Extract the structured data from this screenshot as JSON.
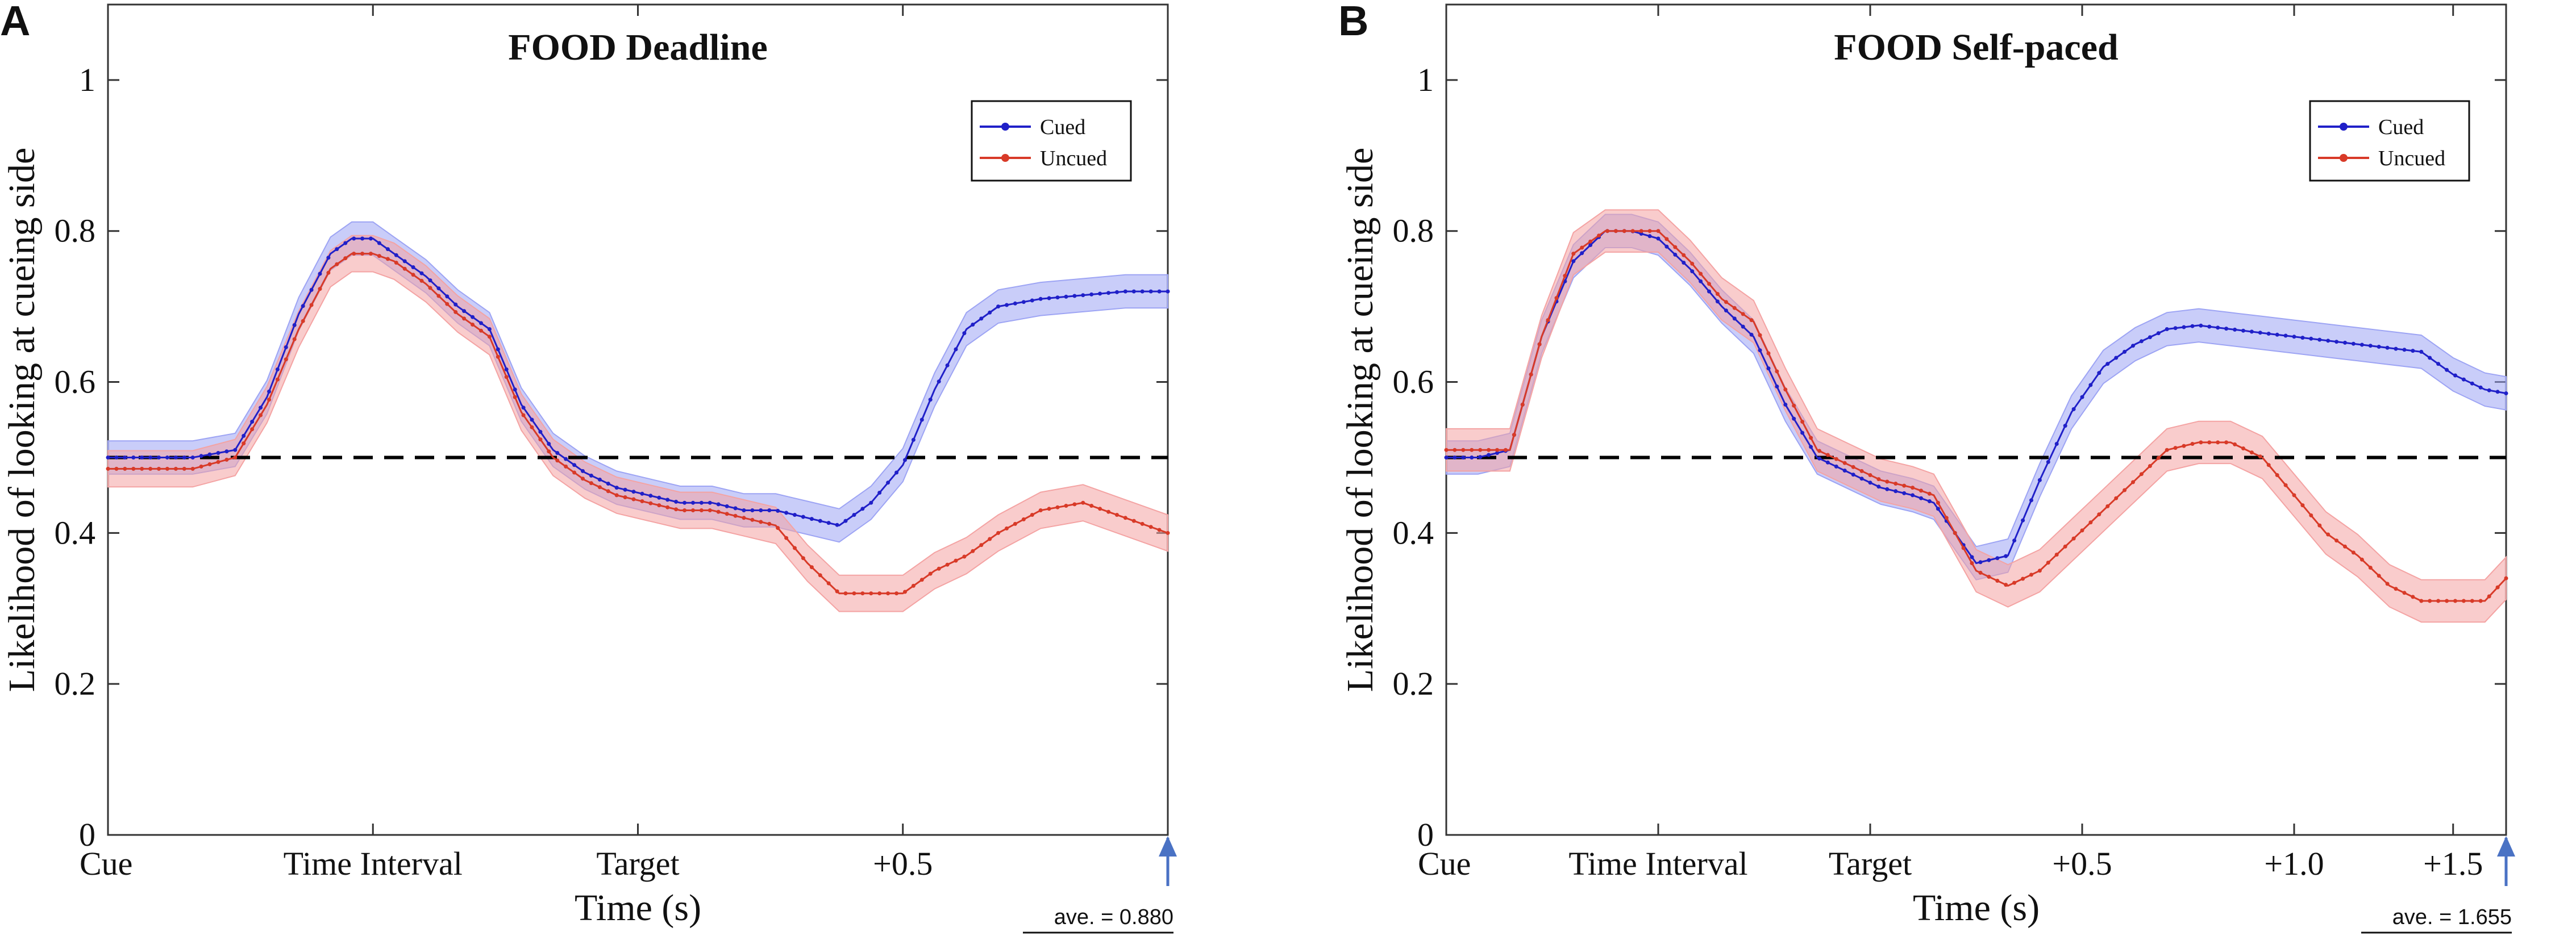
{
  "colors": {
    "cued_line": "#2020c8",
    "cued_band": "#9da4f4",
    "uncued_line": "#d83a28",
    "uncued_band": "#f4a3a3",
    "reference": "#000000",
    "arrow": "#4a72c4"
  },
  "chart_data": [
    {
      "type": "line",
      "panel": "A",
      "title": "FOOD Deadline",
      "xlabel": "Time (s)",
      "ylabel": "Likelihood of looking at cueing side",
      "ylim": [
        0,
        1.1
      ],
      "xlim": [
        0,
        1000
      ],
      "yticks": [
        0,
        0.2,
        0.4,
        0.6,
        0.8,
        1
      ],
      "ytick_labels": [
        "0",
        "0.2",
        "0.4",
        "0.6",
        "0.8",
        "1"
      ],
      "xticks": [
        0,
        250,
        500,
        750
      ],
      "xtick_labels": [
        "Cue",
        "Time Interval",
        "Target",
        "+0.5"
      ],
      "reference_y": 0.5,
      "legend": [
        "Cued",
        "Uncued"
      ],
      "note": "ave. = 0.880",
      "series": [
        {
          "name": "Cued",
          "x": [
            0,
            40,
            80,
            120,
            150,
            180,
            210,
            230,
            250,
            270,
            300,
            330,
            360,
            390,
            420,
            450,
            480,
            510,
            540,
            570,
            600,
            630,
            660,
            690,
            720,
            750,
            780,
            810,
            840,
            880,
            920,
            960,
            1000
          ],
          "y": [
            0.5,
            0.5,
            0.5,
            0.51,
            0.58,
            0.69,
            0.77,
            0.79,
            0.79,
            0.77,
            0.74,
            0.7,
            0.67,
            0.57,
            0.51,
            0.48,
            0.46,
            0.45,
            0.44,
            0.44,
            0.43,
            0.43,
            0.42,
            0.41,
            0.44,
            0.49,
            0.59,
            0.67,
            0.7,
            0.71,
            0.715,
            0.72,
            0.72
          ],
          "band": 0.022
        },
        {
          "name": "Uncued",
          "x": [
            0,
            40,
            80,
            120,
            150,
            180,
            210,
            230,
            250,
            270,
            300,
            330,
            360,
            390,
            420,
            450,
            480,
            510,
            540,
            570,
            600,
            630,
            660,
            690,
            720,
            750,
            780,
            810,
            840,
            880,
            920,
            960,
            1000
          ],
          "y": [
            0.485,
            0.485,
            0.485,
            0.5,
            0.57,
            0.67,
            0.75,
            0.77,
            0.77,
            0.76,
            0.73,
            0.69,
            0.66,
            0.56,
            0.5,
            0.47,
            0.45,
            0.44,
            0.43,
            0.43,
            0.42,
            0.41,
            0.36,
            0.32,
            0.32,
            0.32,
            0.35,
            0.37,
            0.4,
            0.43,
            0.44,
            0.42,
            0.4
          ],
          "band": 0.024
        }
      ]
    },
    {
      "type": "line",
      "panel": "B",
      "title": "FOOD Self-paced",
      "xlabel": "Time (s)",
      "ylabel": "Likelihood of looking at cueing side",
      "ylim": [
        0,
        1.1
      ],
      "xlim": [
        0,
        1000
      ],
      "yticks": [
        0,
        0.2,
        0.4,
        0.6,
        0.8,
        1
      ],
      "ytick_labels": [
        "0",
        "0.2",
        "0.4",
        "0.6",
        "0.8",
        "1"
      ],
      "xticks": [
        0,
        200,
        400,
        600,
        800,
        950
      ],
      "xtick_labels": [
        "Cue",
        "Time Interval",
        "Target",
        "+0.5",
        "+1.0",
        "+1.5"
      ],
      "reference_y": 0.5,
      "legend": [
        "Cued",
        "Uncued"
      ],
      "note": "ave. = 1.655",
      "series": [
        {
          "name": "Cued",
          "x": [
            0,
            30,
            60,
            90,
            120,
            150,
            175,
            200,
            230,
            260,
            290,
            320,
            350,
            380,
            410,
            440,
            460,
            480,
            500,
            530,
            560,
            590,
            620,
            650,
            680,
            710,
            740,
            770,
            800,
            830,
            860,
            890,
            920,
            950,
            980,
            1000
          ],
          "y": [
            0.5,
            0.5,
            0.51,
            0.66,
            0.76,
            0.8,
            0.8,
            0.79,
            0.75,
            0.7,
            0.66,
            0.57,
            0.5,
            0.48,
            0.46,
            0.45,
            0.44,
            0.4,
            0.36,
            0.37,
            0.47,
            0.56,
            0.62,
            0.65,
            0.67,
            0.675,
            0.67,
            0.665,
            0.66,
            0.655,
            0.65,
            0.645,
            0.64,
            0.61,
            0.59,
            0.585
          ],
          "band": 0.022
        },
        {
          "name": "Uncued",
          "x": [
            0,
            30,
            60,
            90,
            120,
            150,
            175,
            200,
            230,
            260,
            290,
            320,
            350,
            380,
            410,
            440,
            460,
            480,
            500,
            530,
            560,
            590,
            620,
            650,
            680,
            710,
            740,
            770,
            800,
            830,
            860,
            890,
            920,
            950,
            980,
            1000
          ],
          "y": [
            0.51,
            0.51,
            0.51,
            0.66,
            0.77,
            0.8,
            0.8,
            0.8,
            0.76,
            0.71,
            0.68,
            0.59,
            0.51,
            0.49,
            0.47,
            0.46,
            0.45,
            0.4,
            0.35,
            0.33,
            0.35,
            0.39,
            0.43,
            0.47,
            0.51,
            0.52,
            0.52,
            0.5,
            0.45,
            0.4,
            0.37,
            0.33,
            0.31,
            0.31,
            0.31,
            0.34
          ],
          "band": 0.028
        }
      ]
    }
  ]
}
